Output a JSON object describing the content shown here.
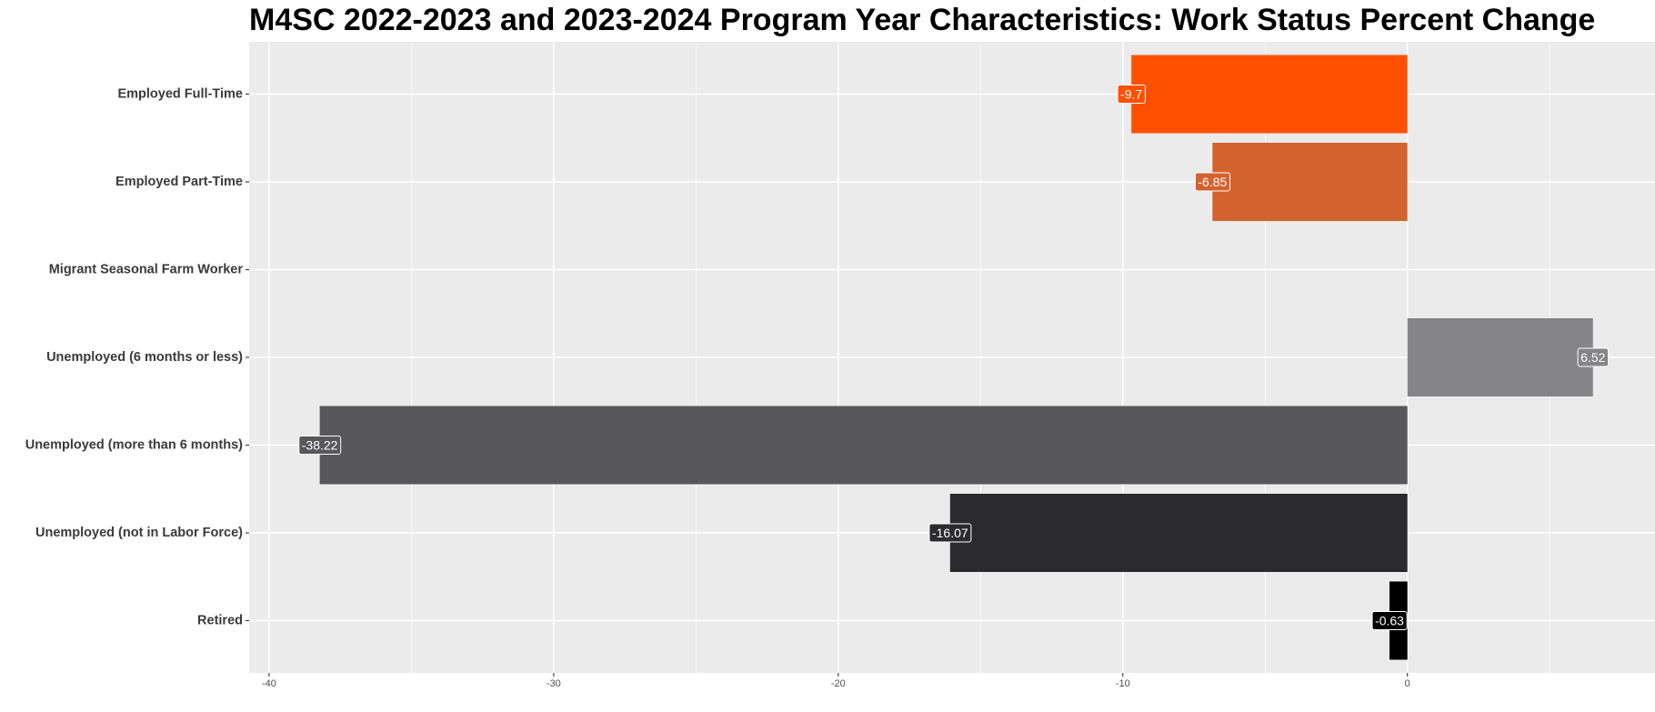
{
  "chart_data": {
    "type": "bar",
    "orientation": "horizontal",
    "title": "M4SC 2022-2023 and 2023-2024 Program Year Characteristics: Work Status Percent Change",
    "xlabel": "",
    "ylabel": "",
    "categories": [
      "Employed Full-Time",
      "Employed Part-Time",
      "Migrant Seasonal Farm Worker",
      "Unemployed (6 months or less)",
      "Unemployed (more than 6 months)",
      "Unemployed (not in Labor Force)",
      "Retired"
    ],
    "values": [
      -9.7,
      -6.85,
      null,
      6.52,
      -38.22,
      -16.07,
      -0.63
    ],
    "data_labels": [
      "-9.7",
      "-6.85",
      "",
      "6.52",
      "-38.22",
      "-16.07",
      "-0.63"
    ],
    "bar_colors": [
      "#ff5000",
      "#d4622e",
      "#ffffff",
      "#858588",
      "#58585a",
      "#2b2b2d",
      "#000000"
    ],
    "xlim": [
      -40.7,
      8.7
    ],
    "x_ticks": [
      -40,
      -30,
      -20,
      -10,
      0
    ],
    "x_tick_labels": [
      "-40",
      "-30",
      "-20",
      "-10",
      "0"
    ],
    "grid": true,
    "panel_background": "#ebebeb",
    "grid_color": "#ffffff",
    "legend": "none"
  }
}
